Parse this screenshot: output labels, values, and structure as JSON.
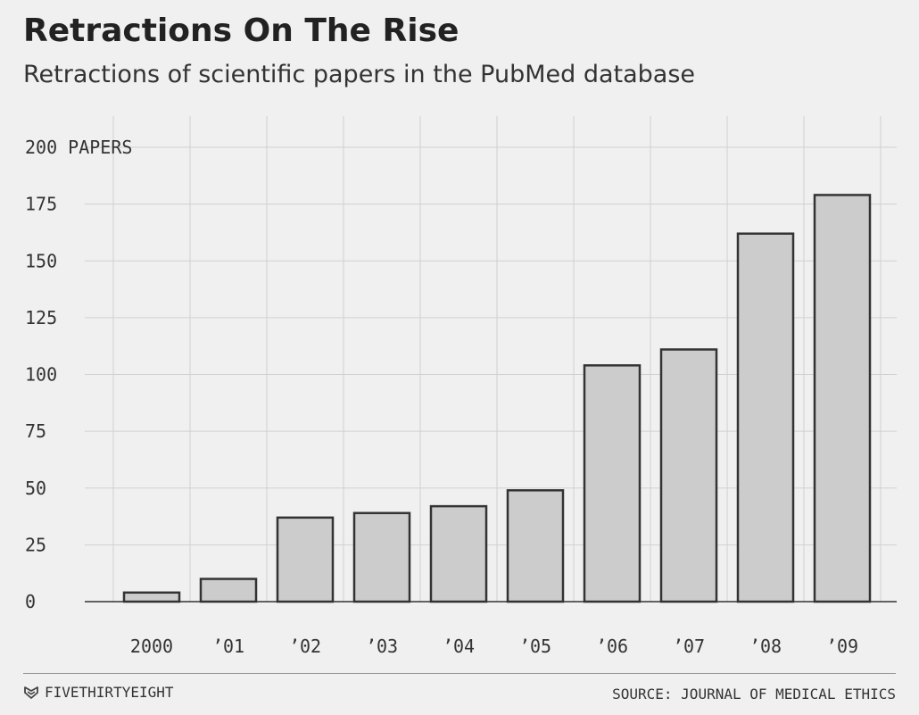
{
  "header": {
    "title": "Retractions On The Rise",
    "subtitle": "Retractions of scientific papers in the PubMed database"
  },
  "footer": {
    "brand": "FIVETHIRTYEIGHT",
    "brand_icon": "fivethirtyeight-logo-icon",
    "source": "SOURCE: JOURNAL OF MEDICAL ETHICS"
  },
  "colors": {
    "background": "#f0f0f0",
    "bar_fill": "#cccccc",
    "bar_stroke": "#333333",
    "grid": "#d0d0d0",
    "baseline": "#333333",
    "text": "#222222"
  },
  "chart_data": {
    "type": "bar",
    "title": "Retractions On The Rise",
    "subtitle": "Retractions of scientific papers in the PubMed database",
    "categories": [
      "2000",
      "’01",
      "’02",
      "’03",
      "’04",
      "’05",
      "’06",
      "’07",
      "’08",
      "’09"
    ],
    "values": [
      4,
      10,
      37,
      39,
      42,
      49,
      104,
      111,
      162,
      179
    ],
    "ylim": [
      0,
      200
    ],
    "yticks": [
      0,
      25,
      50,
      75,
      100,
      125,
      150,
      175,
      200
    ],
    "ytick_labels": [
      "0",
      "25",
      "50",
      "75",
      "100",
      "125",
      "150",
      "175",
      "200 PAPERS"
    ],
    "xlabel": "",
    "ylabel": "",
    "grid": true
  }
}
